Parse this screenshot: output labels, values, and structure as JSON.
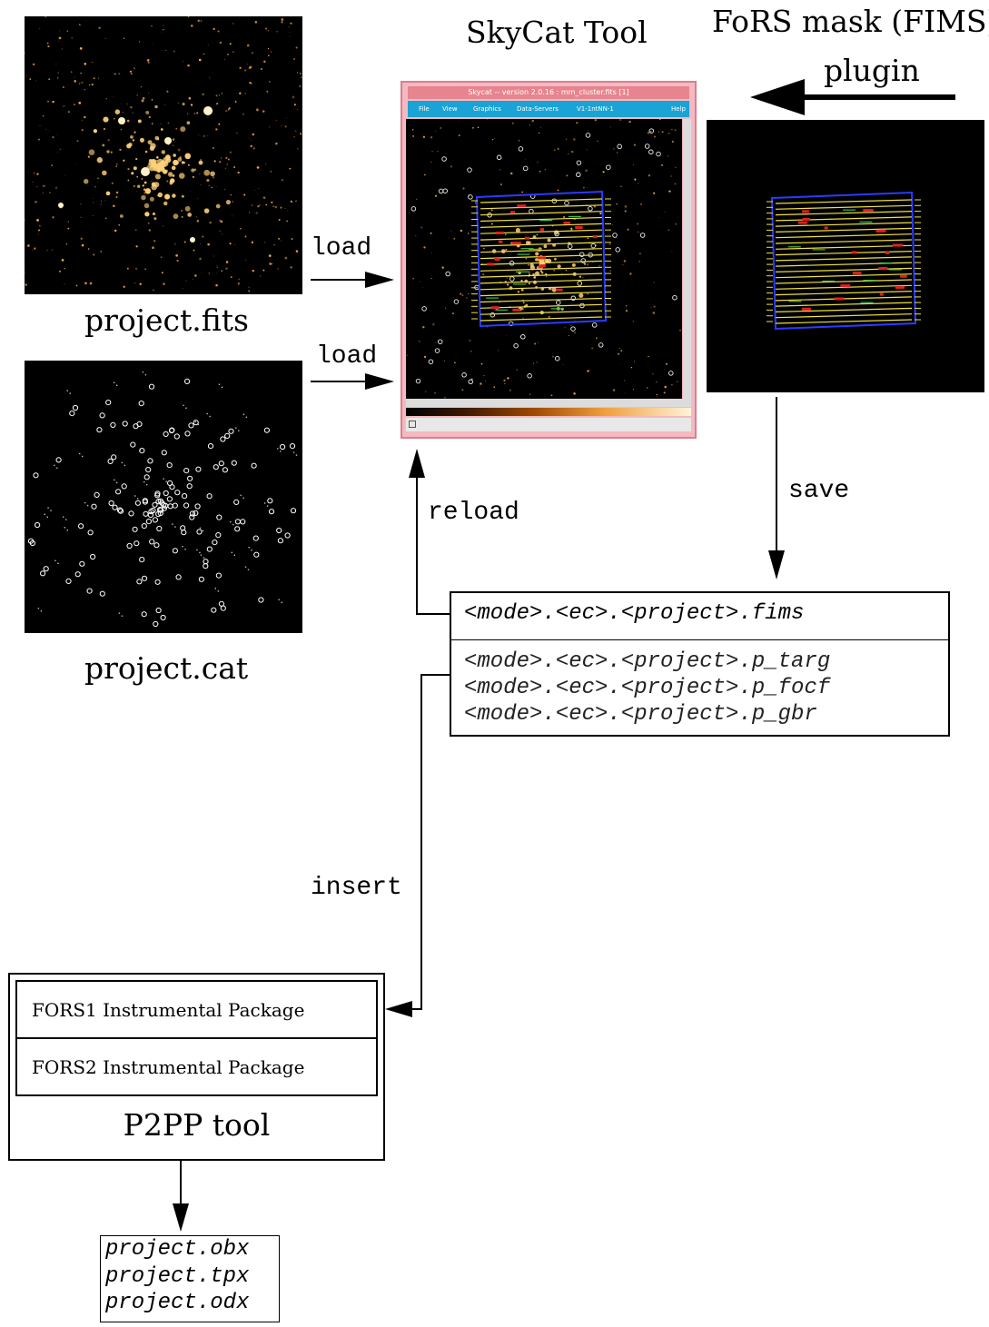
{
  "titles": {
    "skycat": "SkyCat Tool",
    "fims_line1": "FoRS mask (FIMS)",
    "fims_line2": "plugin"
  },
  "images": {
    "fits_caption": "project.fits",
    "cat_caption": "project.cat"
  },
  "flow": {
    "load_top": "load",
    "load_bottom": "load",
    "reload": "reload",
    "save": "save",
    "insert": "insert"
  },
  "skycat_window": {
    "title": "Skycat -- version 2.0.16 : mm_cluster.fits [1]",
    "menu": [
      "File",
      "View",
      "Graphics",
      "Data-Servers",
      "V1-1ntNN-1",
      "Help"
    ]
  },
  "files": {
    "fims": "<mode>.<ec>.<project>.fims",
    "outputs": [
      "<mode>.<ec>.<project>.p_targ",
      "<mode>.<ec>.<project>.p_focf",
      "<mode>.<ec>.<project>.p_gbr"
    ]
  },
  "p2pp": {
    "packages": [
      "FORS1 Instrumental Package",
      "FORS2 Instrumental Package"
    ],
    "title": "P2PP tool"
  },
  "outputs": [
    "project.obx",
    "project.tpx",
    "project.odx"
  ],
  "colors": {
    "ink": "#000000",
    "star": "#ffb050",
    "mask_slit": "#f0e040",
    "mask_frame": "#2a3cff",
    "mask_label": "#e02020",
    "skycat_border": "#f4b9c1",
    "skycat_menubar": "#1aa3d4"
  }
}
